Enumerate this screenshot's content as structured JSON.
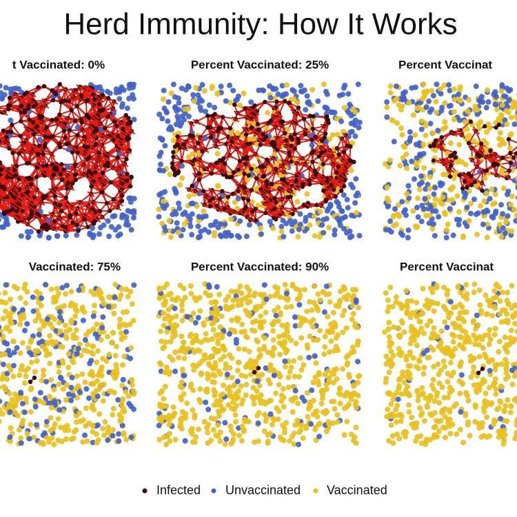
{
  "header": {
    "title": "Herd Immunity: How It Works"
  },
  "panels": [
    {
      "title": "t Vaccinated: 0%"
    },
    {
      "title": "Percent Vaccinated: 25%"
    },
    {
      "title": "Percent Vaccinat"
    },
    {
      "title": "Vaccinated: 75%"
    },
    {
      "title": "Percent Vaccinated: 90%"
    },
    {
      "title": "Percent Vaccinat"
    }
  ],
  "legend": [
    {
      "label": "Infected",
      "color": "#3a0a0a"
    },
    {
      "label": "Unvaccinated",
      "color": "#4262c8"
    },
    {
      "label": "Vaccinated",
      "color": "#e8c020"
    }
  ],
  "edge_color": "#e21b12"
}
